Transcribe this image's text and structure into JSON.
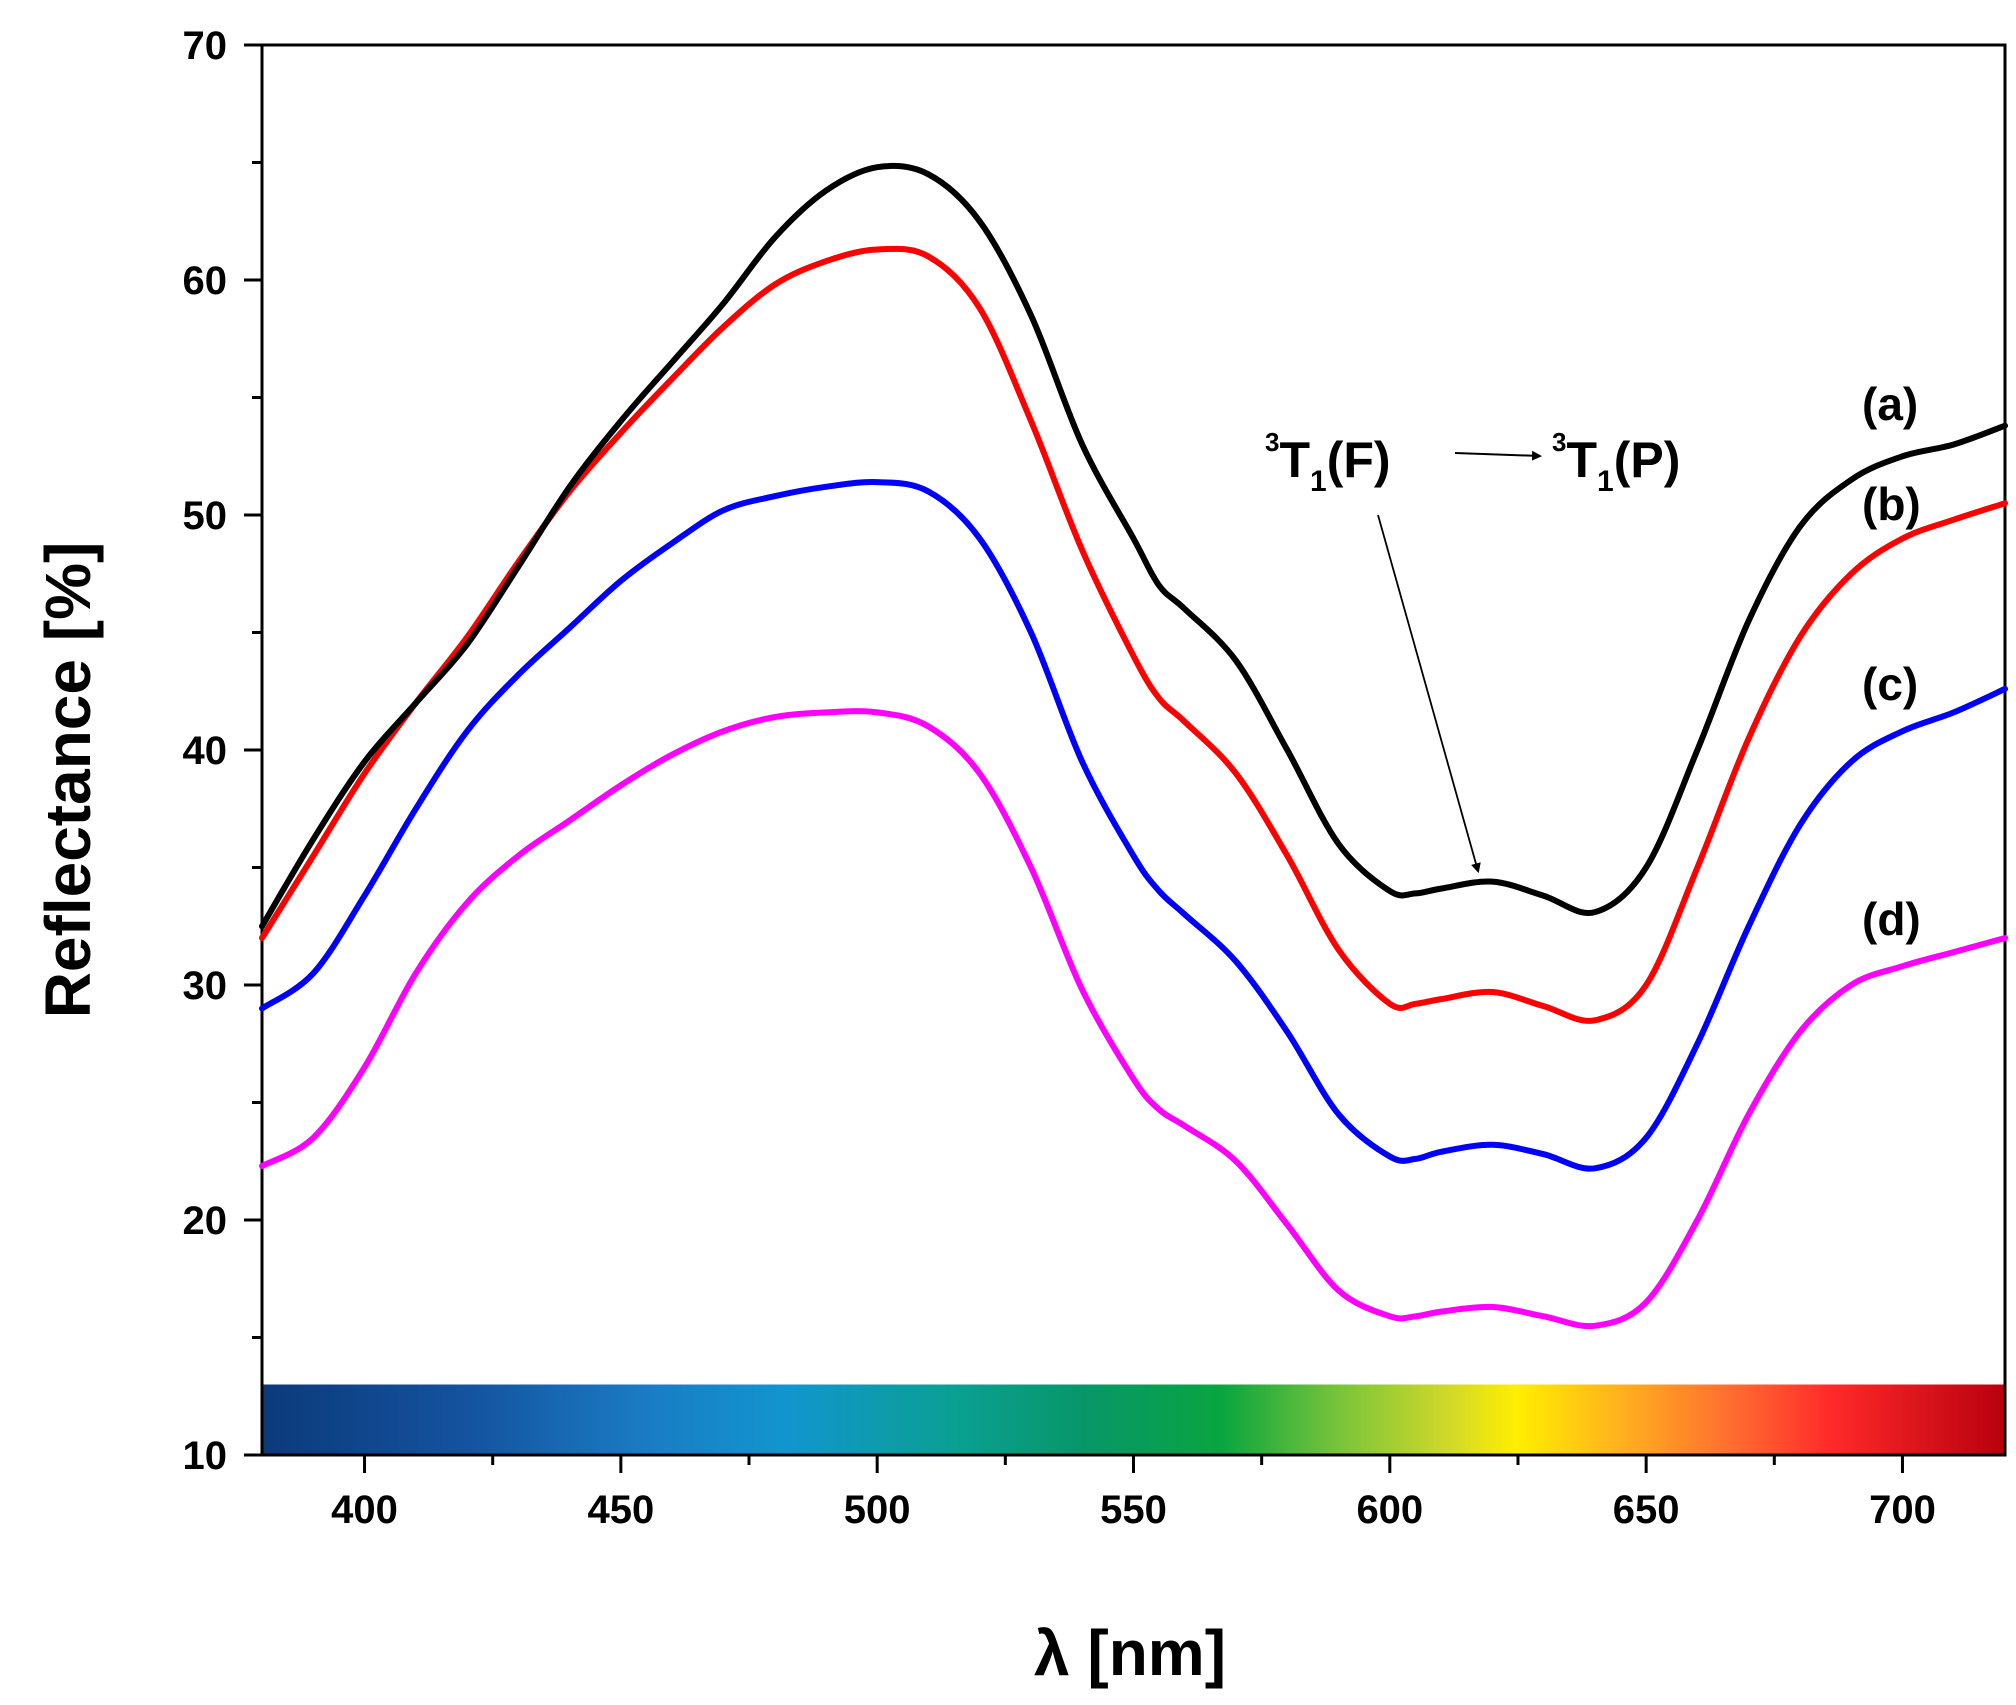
{
  "chart_data": {
    "type": "line",
    "title": "",
    "xlabel": "λ [nm]",
    "ylabel": "Reflectance [%]",
    "xlim": [
      380,
      720
    ],
    "ylim": [
      10,
      70
    ],
    "x_ticks": [
      400,
      450,
      500,
      550,
      600,
      650,
      700
    ],
    "y_ticks": [
      10,
      20,
      30,
      40,
      50,
      60,
      70
    ],
    "grid": false,
    "x": [
      380,
      390,
      400,
      410,
      420,
      430,
      440,
      450,
      460,
      470,
      480,
      490,
      500,
      510,
      520,
      530,
      540,
      550,
      555,
      560,
      570,
      580,
      590,
      600,
      605,
      610,
      620,
      630,
      640,
      650,
      660,
      670,
      680,
      690,
      700,
      710,
      720
    ],
    "series": [
      {
        "name": "(a)",
        "color": "#000000",
        "values": [
          32.5,
          36.2,
          39.5,
          42.0,
          44.5,
          47.8,
          51.2,
          54.0,
          56.5,
          59.0,
          61.8,
          63.8,
          64.8,
          64.5,
          62.5,
          58.5,
          53.0,
          49.0,
          47.0,
          46.0,
          43.8,
          40.0,
          36.0,
          34.0,
          33.9,
          34.1,
          34.4,
          33.8,
          33.1,
          35.0,
          40.0,
          45.5,
          49.5,
          51.5,
          52.5,
          53.0,
          53.8
        ]
      },
      {
        "name": "(b)",
        "color": "#ff0000",
        "values": [
          32.0,
          35.5,
          39.0,
          42.0,
          44.8,
          48.0,
          51.0,
          53.5,
          55.8,
          58.0,
          59.8,
          60.8,
          61.3,
          61.0,
          58.8,
          54.0,
          48.5,
          44.0,
          42.2,
          41.2,
          39.0,
          35.5,
          31.5,
          29.2,
          29.2,
          29.4,
          29.7,
          29.1,
          28.5,
          30.0,
          35.0,
          40.5,
          44.8,
          47.5,
          49.0,
          49.8,
          50.5
        ]
      },
      {
        "name": "(c)",
        "color": "#0000ff",
        "values": [
          29.0,
          30.5,
          33.8,
          37.5,
          40.8,
          43.2,
          45.2,
          47.2,
          48.8,
          50.2,
          50.8,
          51.2,
          51.4,
          51.0,
          49.0,
          45.0,
          39.5,
          35.5,
          34.0,
          33.0,
          31.0,
          28.0,
          24.5,
          22.7,
          22.6,
          22.9,
          23.2,
          22.8,
          22.2,
          23.5,
          27.5,
          32.5,
          36.8,
          39.5,
          40.8,
          41.6,
          42.6
        ]
      },
      {
        "name": "(d)",
        "color": "#ff00ff",
        "values": [
          22.3,
          23.5,
          26.5,
          30.5,
          33.5,
          35.5,
          37.0,
          38.5,
          39.8,
          40.8,
          41.4,
          41.6,
          41.6,
          41.0,
          39.0,
          35.0,
          29.8,
          26.0,
          24.7,
          24.0,
          22.5,
          19.8,
          17.0,
          15.9,
          15.9,
          16.1,
          16.3,
          15.9,
          15.5,
          16.5,
          20.0,
          24.5,
          28.0,
          30.0,
          30.8,
          31.4,
          32.0
        ]
      }
    ],
    "annotations": {
      "transition_text": "³T₁(F) → ³T₁(P)",
      "transition_parts": {
        "sup": "3",
        "t": "T",
        "sub": "1",
        "left_term": "(F)",
        "right_term": "(P)"
      },
      "arrow_points_to": {
        "x": 618,
        "y": 34.5
      }
    },
    "legend_placement": "right (curve labels at line ends)",
    "spectrum_bar": {
      "from_nm": 380,
      "to_nm": 720,
      "y_range": [
        10,
        13
      ]
    }
  }
}
